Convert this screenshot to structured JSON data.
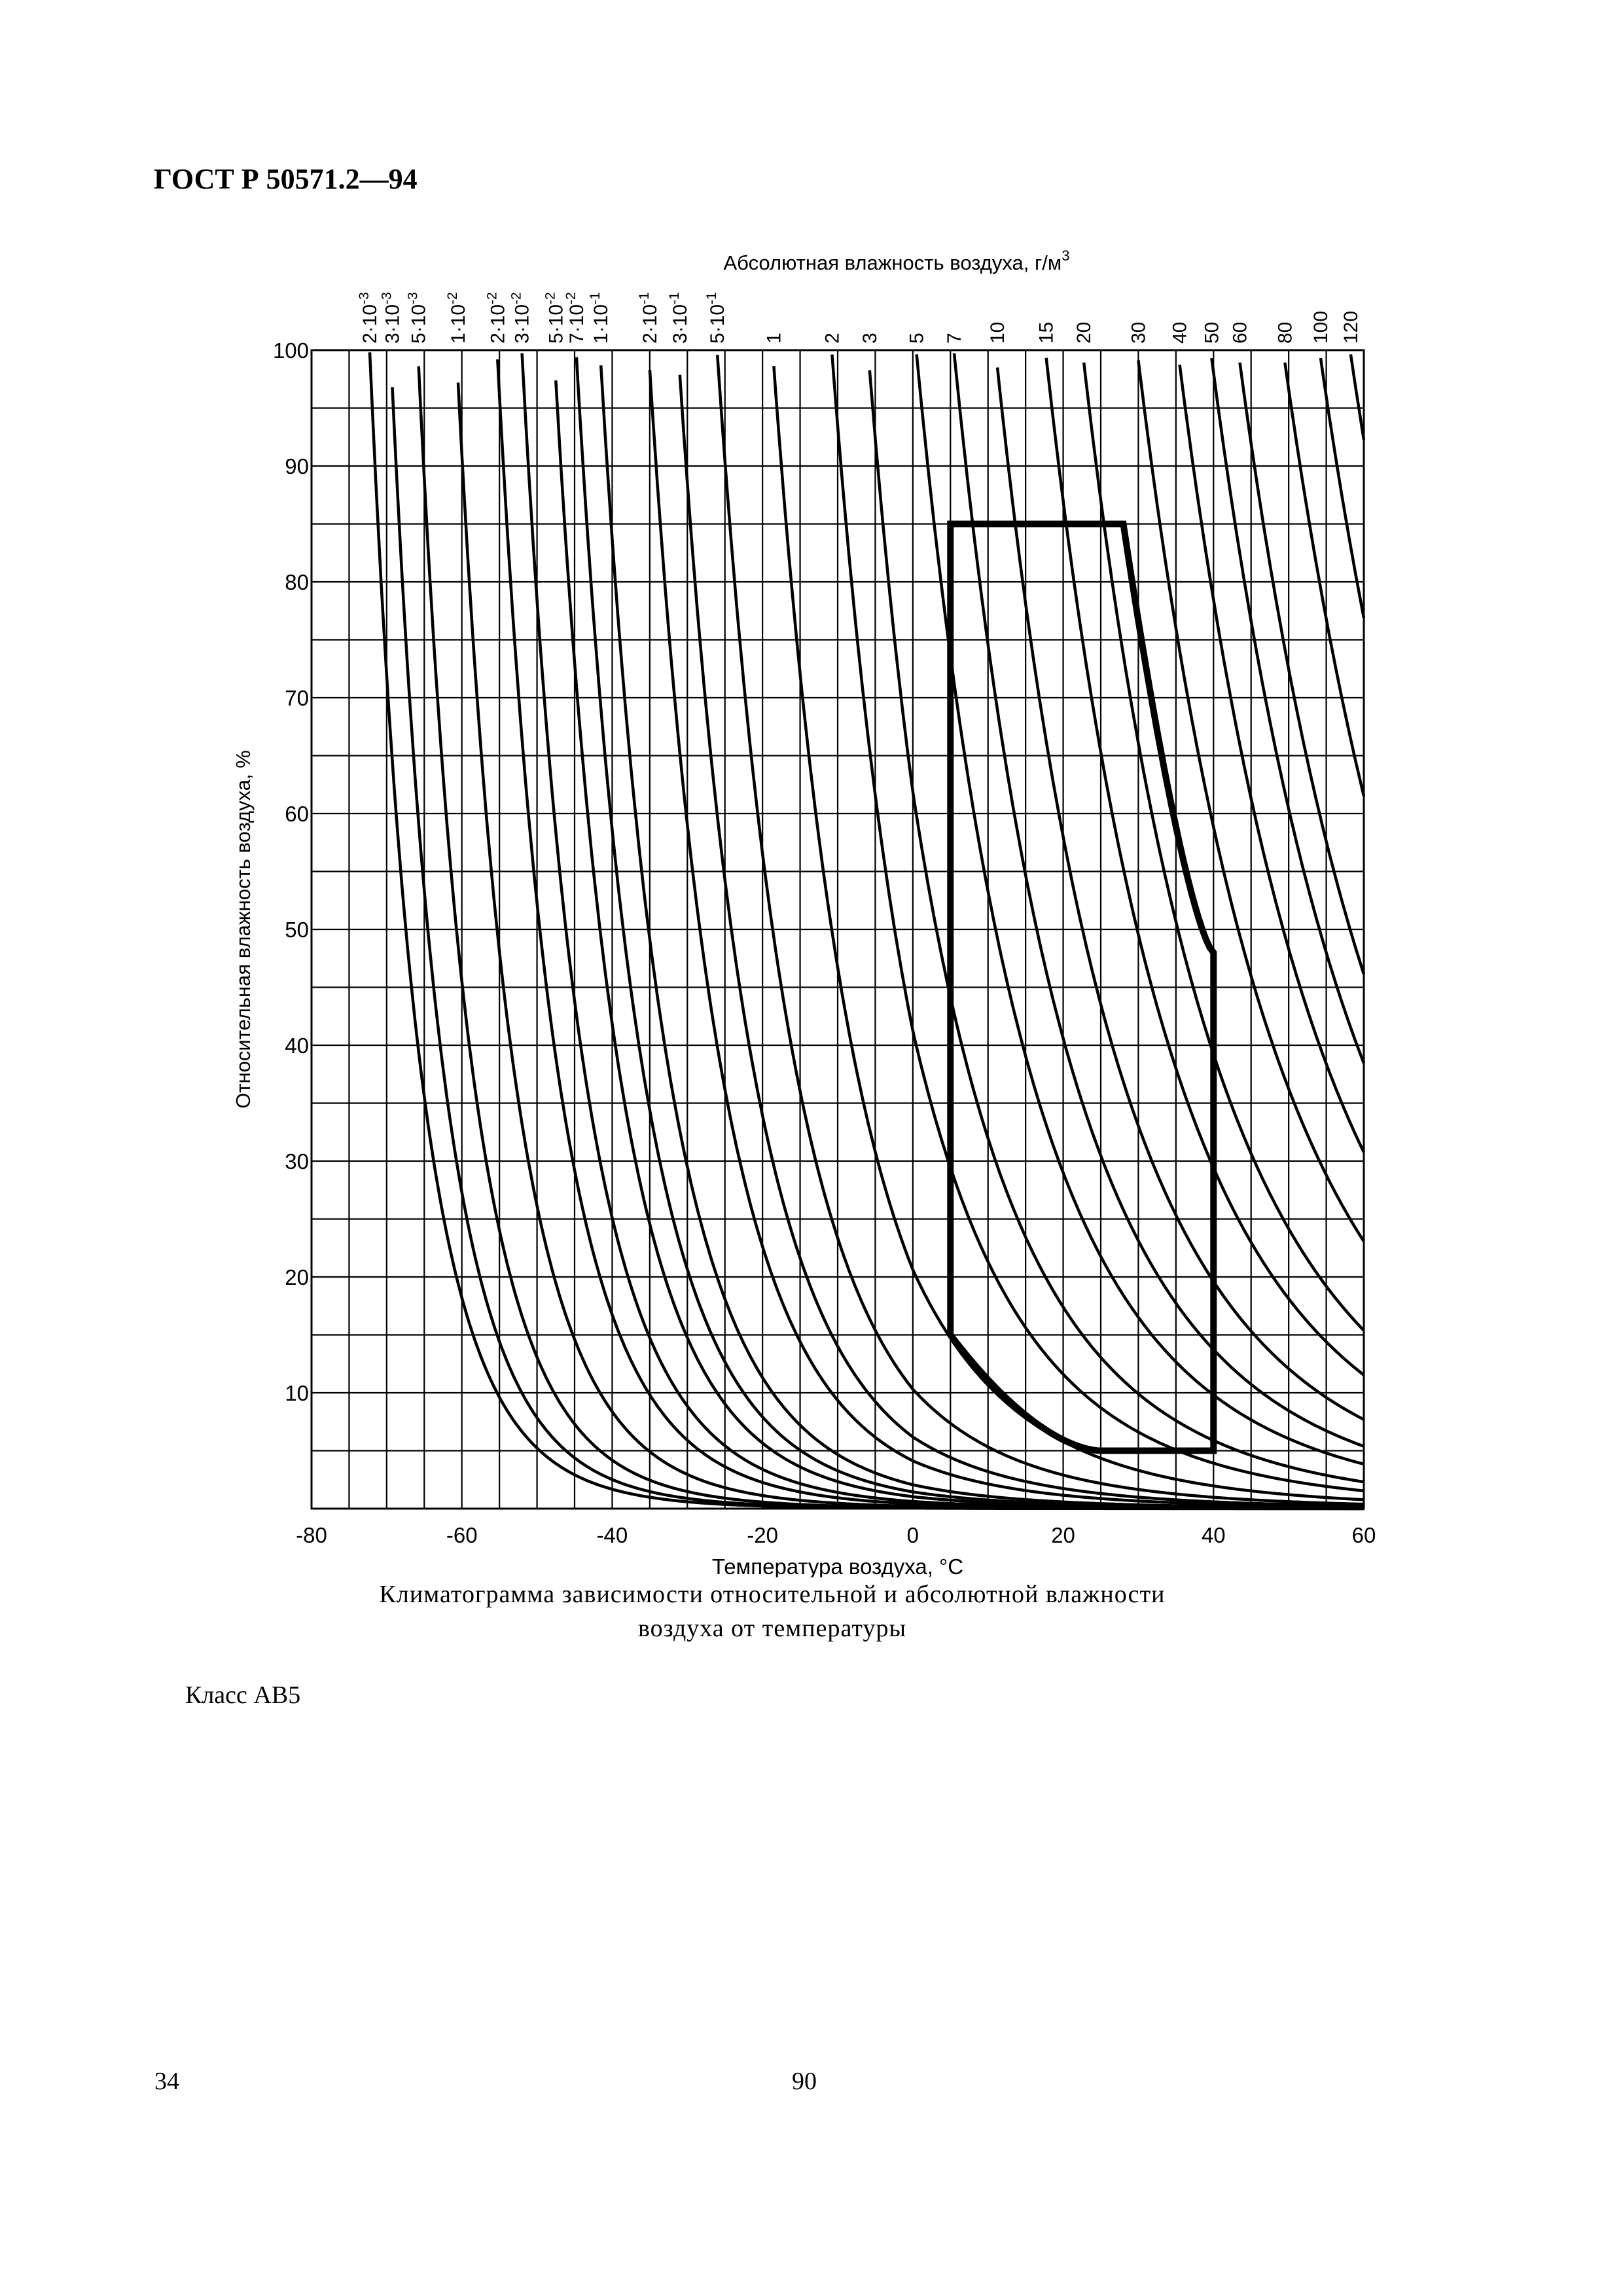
{
  "header": {
    "doc_code": "ГОСТ Р 50571.2—94"
  },
  "caption": {
    "line1": "Климатограмма зависимости относительной и абсолютной влажности",
    "line2": "воздуха от температуры"
  },
  "class_label": "Класс АВ5",
  "footer": {
    "left_page": "34",
    "center_page": "90"
  },
  "chart_data": {
    "type": "line",
    "title": "",
    "xlabel": "Температура воздуха, °C",
    "ylabel": "Относительная влажность воздуха, %",
    "top_axis_label": "Абсолютная влажность воздуха, г/м",
    "top_axis_label_sup": "3",
    "xlim": [
      -80,
      60
    ],
    "ylim": [
      0,
      100
    ],
    "x_ticks": [
      -80,
      -60,
      -40,
      -20,
      0,
      20,
      40,
      60
    ],
    "y_ticks": [
      10,
      20,
      30,
      40,
      50,
      60,
      70,
      80,
      90,
      100
    ],
    "grid": true,
    "abs_humidity_curves": [
      {
        "value": 0.002,
        "mant": "2",
        "exp": "-3"
      },
      {
        "value": 0.003,
        "mant": "3",
        "exp": "-3"
      },
      {
        "value": 0.005,
        "mant": "5",
        "exp": "-3"
      },
      {
        "value": 0.01,
        "mant": "1",
        "exp": "-2"
      },
      {
        "value": 0.02,
        "mant": "2",
        "exp": "-2"
      },
      {
        "value": 0.03,
        "mant": "3",
        "exp": "-2"
      },
      {
        "value": 0.05,
        "mant": "5",
        "exp": "-2"
      },
      {
        "value": 0.07,
        "mant": "7",
        "exp": "-2"
      },
      {
        "value": 0.1,
        "mant": "1",
        "exp": "-1"
      },
      {
        "value": 0.2,
        "mant": "2",
        "exp": "-1"
      },
      {
        "value": 0.3,
        "mant": "3",
        "exp": "-1"
      },
      {
        "value": 0.5,
        "mant": "5",
        "exp": "-1"
      },
      {
        "value": 1,
        "mant": "1",
        "exp": ""
      },
      {
        "value": 2,
        "mant": "2",
        "exp": ""
      },
      {
        "value": 3,
        "mant": "3",
        "exp": ""
      },
      {
        "value": 5,
        "mant": "5",
        "exp": ""
      },
      {
        "value": 7,
        "mant": "7",
        "exp": ""
      },
      {
        "value": 10,
        "mant": "10",
        "exp": ""
      },
      {
        "value": 15,
        "mant": "15",
        "exp": ""
      },
      {
        "value": 20,
        "mant": "20",
        "exp": ""
      },
      {
        "value": 30,
        "mant": "30",
        "exp": ""
      },
      {
        "value": 40,
        "mant": "40",
        "exp": ""
      },
      {
        "value": 50,
        "mant": "50",
        "exp": ""
      },
      {
        "value": 60,
        "mant": "60",
        "exp": ""
      },
      {
        "value": 80,
        "mant": "80",
        "exp": ""
      },
      {
        "value": 100,
        "mant": "100",
        "exp": ""
      },
      {
        "value": 120,
        "mant": "120",
        "exp": ""
      }
    ],
    "class_boundary": [
      {
        "t": 5,
        "rh": 85
      },
      {
        "t": 28,
        "rh": 85
      },
      {
        "t": 40,
        "rh": 48
      },
      {
        "t": 40,
        "rh": 5
      },
      {
        "t": 25,
        "rh": 5
      },
      {
        "t": 5,
        "rh": 15
      },
      {
        "t": 5,
        "rh": 85
      }
    ]
  }
}
